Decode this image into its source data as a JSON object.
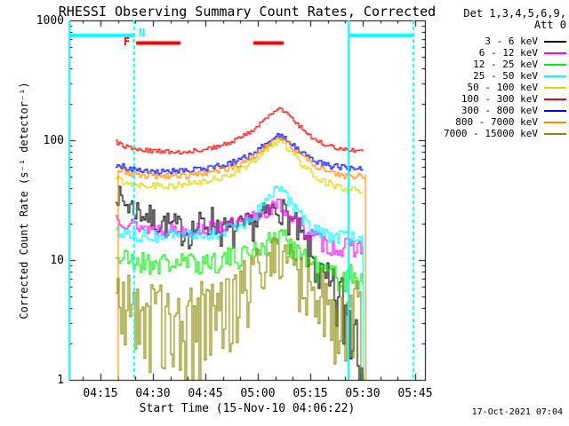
{
  "title": "RHESSI Observing Summary Count Rates, Corrected",
  "timestamp": "17-Oct-2021 07:04",
  "legend": {
    "header_line1": "Det 1,3,4,5,6,9,",
    "header_line2": "Att 0",
    "items": [
      {
        "label": "3 - 6 keV",
        "color": "#000000"
      },
      {
        "label": "6 - 12 keV",
        "color": "#ff00ff"
      },
      {
        "label": "12 - 25 keV",
        "color": "#00ee00"
      },
      {
        "label": "25 - 50 keV",
        "color": "#00ffff"
      },
      {
        "label": "50 - 100 keV",
        "color": "#d9d900"
      },
      {
        "label": "100 - 300 keV",
        "color": "#ee0000"
      },
      {
        "label": "300 - 800 keV",
        "color": "#0000ff"
      },
      {
        "label": "800 - 7000 keV",
        "color": "#ff8c00"
      },
      {
        "label": "7000 - 15000 keV",
        "color": "#8b8b00"
      }
    ]
  },
  "chart_data": {
    "type": "line",
    "title": "RHESSI Observing Summary Count Rates, Corrected",
    "xlabel": "Start Time (15-Nov-10 04:06:22)",
    "ylabel": "Corrected Count Rate (s⁻¹ detector⁻¹)",
    "x_axis": {
      "unit": "minutes after 04:00 UT",
      "range": [
        6.1,
        107.8
      ],
      "tick_values": [
        15,
        30,
        45,
        60,
        75,
        90,
        105
      ],
      "tick_labels": [
        "04:15",
        "04:30",
        "04:45",
        "05:00",
        "05:15",
        "05:30",
        "05:45"
      ],
      "minor_tick_step": 5
    },
    "y_axis": {
      "scale": "log",
      "range": [
        1,
        1000
      ],
      "tick_values": [
        1,
        10,
        100,
        1000
      ],
      "tick_labels": [
        "1",
        "10",
        "100",
        "1000"
      ]
    },
    "series": [
      {
        "name": "3 - 6 keV",
        "color": "#000000",
        "seed": 7,
        "keyframes": [
          [
            19.3,
            38,
            0.08
          ],
          [
            21,
            31,
            0.1
          ],
          [
            25,
            27,
            0.1
          ],
          [
            30,
            22,
            0.1
          ],
          [
            35,
            19.5,
            0.11
          ],
          [
            40,
            17.5,
            0.12
          ],
          [
            44,
            20,
            0.12
          ],
          [
            47,
            22,
            0.12
          ],
          [
            50,
            17.5,
            0.13
          ],
          [
            53,
            17,
            0.13
          ],
          [
            57,
            19,
            0.12
          ],
          [
            62,
            24,
            0.11
          ],
          [
            65.9,
            28,
            0.1
          ],
          [
            68,
            24,
            0.11
          ],
          [
            71,
            18,
            0.13
          ],
          [
            75,
            11,
            0.15
          ],
          [
            78,
            7,
            0.18
          ],
          [
            81,
            5,
            0.25
          ],
          [
            84,
            4,
            0.35
          ],
          [
            86.5,
            3.5,
            0.45
          ],
          [
            90.3,
            3.2,
            0.5
          ]
        ],
        "skew_down": 1.3
      },
      {
        "name": "6 - 12 keV",
        "color": "#ff00ff",
        "seed": 13,
        "keyframes": [
          [
            19.3,
            23,
            0.06
          ],
          [
            23,
            20,
            0.06
          ],
          [
            28,
            18.5,
            0.06
          ],
          [
            35,
            18,
            0.06
          ],
          [
            42,
            18,
            0.06
          ],
          [
            48,
            19,
            0.06
          ],
          [
            55,
            20,
            0.07
          ],
          [
            60,
            24,
            0.07
          ],
          [
            65.9,
            29,
            0.06
          ],
          [
            68,
            26,
            0.07
          ],
          [
            71,
            21,
            0.07
          ],
          [
            75,
            16,
            0.08
          ],
          [
            79,
            13.5,
            0.08
          ],
          [
            83,
            12.5,
            0.08
          ],
          [
            90.3,
            13,
            0.08
          ]
        ]
      },
      {
        "name": "12 - 25 keV",
        "color": "#00ee00",
        "seed": 21,
        "keyframes": [
          [
            19.3,
            10.8,
            0.08
          ],
          [
            24,
            10,
            0.08
          ],
          [
            32,
            9.6,
            0.08
          ],
          [
            40,
            9.6,
            0.08
          ],
          [
            47,
            10,
            0.08
          ],
          [
            54,
            11,
            0.08
          ],
          [
            60,
            13,
            0.08
          ],
          [
            65.9,
            16.5,
            0.07
          ],
          [
            68,
            15,
            0.08
          ],
          [
            71,
            12.5,
            0.08
          ],
          [
            75,
            9.5,
            0.09
          ],
          [
            79,
            8,
            0.09
          ],
          [
            84,
            7.3,
            0.1
          ],
          [
            90.3,
            7.5,
            0.1
          ]
        ],
        "skew_down": 1.5
      },
      {
        "name": "25 - 50 keV",
        "color": "#00ffff",
        "seed": 34,
        "end_drop": true,
        "keyframes": [
          [
            19.3,
            17.5,
            0.055
          ],
          [
            24,
            16.2,
            0.055
          ],
          [
            32,
            15.8,
            0.055
          ],
          [
            40,
            15.8,
            0.055
          ],
          [
            46,
            16.5,
            0.055
          ],
          [
            52,
            18,
            0.06
          ],
          [
            58,
            22,
            0.06
          ],
          [
            62,
            30,
            0.06
          ],
          [
            65.9,
            40,
            0.055
          ],
          [
            67.5,
            36,
            0.06
          ],
          [
            70,
            28,
            0.06
          ],
          [
            73,
            21,
            0.06
          ],
          [
            76,
            17.5,
            0.06
          ],
          [
            80,
            15.8,
            0.055
          ],
          [
            85,
            15.5,
            0.055
          ],
          [
            90.3,
            15.5,
            0.055
          ]
        ]
      },
      {
        "name": "50 - 100 keV",
        "color": "#d9d900",
        "seed": 55,
        "keyframes": [
          [
            19.3,
            48,
            0.035
          ],
          [
            23,
            44,
            0.032
          ],
          [
            30,
            42,
            0.03
          ],
          [
            38,
            42,
            0.03
          ],
          [
            45,
            45,
            0.03
          ],
          [
            52,
            52,
            0.03
          ],
          [
            58,
            64,
            0.03
          ],
          [
            62,
            82,
            0.028
          ],
          [
            65.9,
            100,
            0.026
          ],
          [
            68,
            88,
            0.028
          ],
          [
            71,
            70,
            0.03
          ],
          [
            75,
            54,
            0.03
          ],
          [
            79,
            45,
            0.03
          ],
          [
            84,
            39,
            0.03
          ],
          [
            90.3,
            37,
            0.03
          ]
        ]
      },
      {
        "name": "100 - 300 keV",
        "color": "#ee0000",
        "seed": 89,
        "keyframes": [
          [
            19.3,
            96,
            0.022
          ],
          [
            23,
            86,
            0.02
          ],
          [
            30,
            81,
            0.018
          ],
          [
            38,
            80,
            0.018
          ],
          [
            45,
            84,
            0.018
          ],
          [
            52,
            95,
            0.018
          ],
          [
            58,
            118,
            0.017
          ],
          [
            62,
            152,
            0.016
          ],
          [
            65.9,
            186,
            0.015
          ],
          [
            68,
            168,
            0.016
          ],
          [
            71,
            138,
            0.017
          ],
          [
            75,
            108,
            0.018
          ],
          [
            79,
            92,
            0.018
          ],
          [
            84,
            84,
            0.018
          ],
          [
            90.3,
            82,
            0.018
          ]
        ]
      },
      {
        "name": "300 - 800 keV",
        "color": "#0000ff",
        "seed": 144,
        "keyframes": [
          [
            19.3,
            63,
            0.028
          ],
          [
            23,
            58,
            0.026
          ],
          [
            30,
            55,
            0.025
          ],
          [
            38,
            55,
            0.025
          ],
          [
            45,
            58,
            0.025
          ],
          [
            52,
            64,
            0.025
          ],
          [
            58,
            76,
            0.024
          ],
          [
            62,
            94,
            0.022
          ],
          [
            65.9,
            112,
            0.02
          ],
          [
            68,
            102,
            0.022
          ],
          [
            71,
            86,
            0.024
          ],
          [
            75,
            70,
            0.025
          ],
          [
            79,
            62,
            0.025
          ],
          [
            84,
            59,
            0.025
          ],
          [
            90.3,
            58,
            0.025
          ]
        ]
      },
      {
        "name": "800 - 7000 keV",
        "color": "#ff8c00",
        "seed": 233,
        "start_drop": true,
        "end_drop": true,
        "keyframes": [
          [
            20.1,
            57,
            0.03
          ],
          [
            23,
            53,
            0.028
          ],
          [
            30,
            50,
            0.027
          ],
          [
            38,
            50,
            0.027
          ],
          [
            45,
            53,
            0.027
          ],
          [
            52,
            59,
            0.027
          ],
          [
            58,
            70,
            0.026
          ],
          [
            62,
            88,
            0.024
          ],
          [
            65.9,
            106,
            0.022
          ],
          [
            68,
            96,
            0.024
          ],
          [
            71,
            80,
            0.026
          ],
          [
            75,
            64,
            0.027
          ],
          [
            79,
            56,
            0.027
          ],
          [
            84,
            51,
            0.028
          ],
          [
            90.9,
            49,
            0.028
          ]
        ]
      },
      {
        "name": "7000 - 15000 keV",
        "color": "#8b8b00",
        "seed": 377,
        "end_drop": true,
        "skew_down": 2.2,
        "keyframes": [
          [
            19.3,
            5,
            0.2
          ],
          [
            24,
            3.8,
            0.3
          ],
          [
            30,
            3.0,
            0.35
          ],
          [
            38,
            3.0,
            0.35
          ],
          [
            45,
            4.5,
            0.3
          ],
          [
            52,
            6,
            0.25
          ],
          [
            58,
            8,
            0.2
          ],
          [
            62,
            10,
            0.15
          ],
          [
            65.9,
            13,
            0.12
          ],
          [
            69,
            10,
            0.15
          ],
          [
            73,
            7,
            0.2
          ],
          [
            78,
            4.5,
            0.3
          ],
          [
            83,
            3.5,
            0.35
          ],
          [
            87,
            3.2,
            0.4
          ],
          [
            90.4,
            3,
            0.45
          ]
        ]
      }
    ],
    "flags": {
      "night": {
        "label": "N",
        "color": "#00ffff",
        "segments": [
          [
            6.1,
            24.9
          ],
          [
            86.2,
            104.5
          ]
        ]
      },
      "flare": {
        "label": "F",
        "color": "#ee0000",
        "segments": [
          [
            25.2,
            37.9
          ],
          [
            58.7,
            67.4
          ]
        ]
      }
    },
    "event_lines": {
      "color": "#00ffff",
      "solid": [
        6.15,
        86.06
      ],
      "dashed": [
        24.66,
        104.4
      ]
    }
  }
}
